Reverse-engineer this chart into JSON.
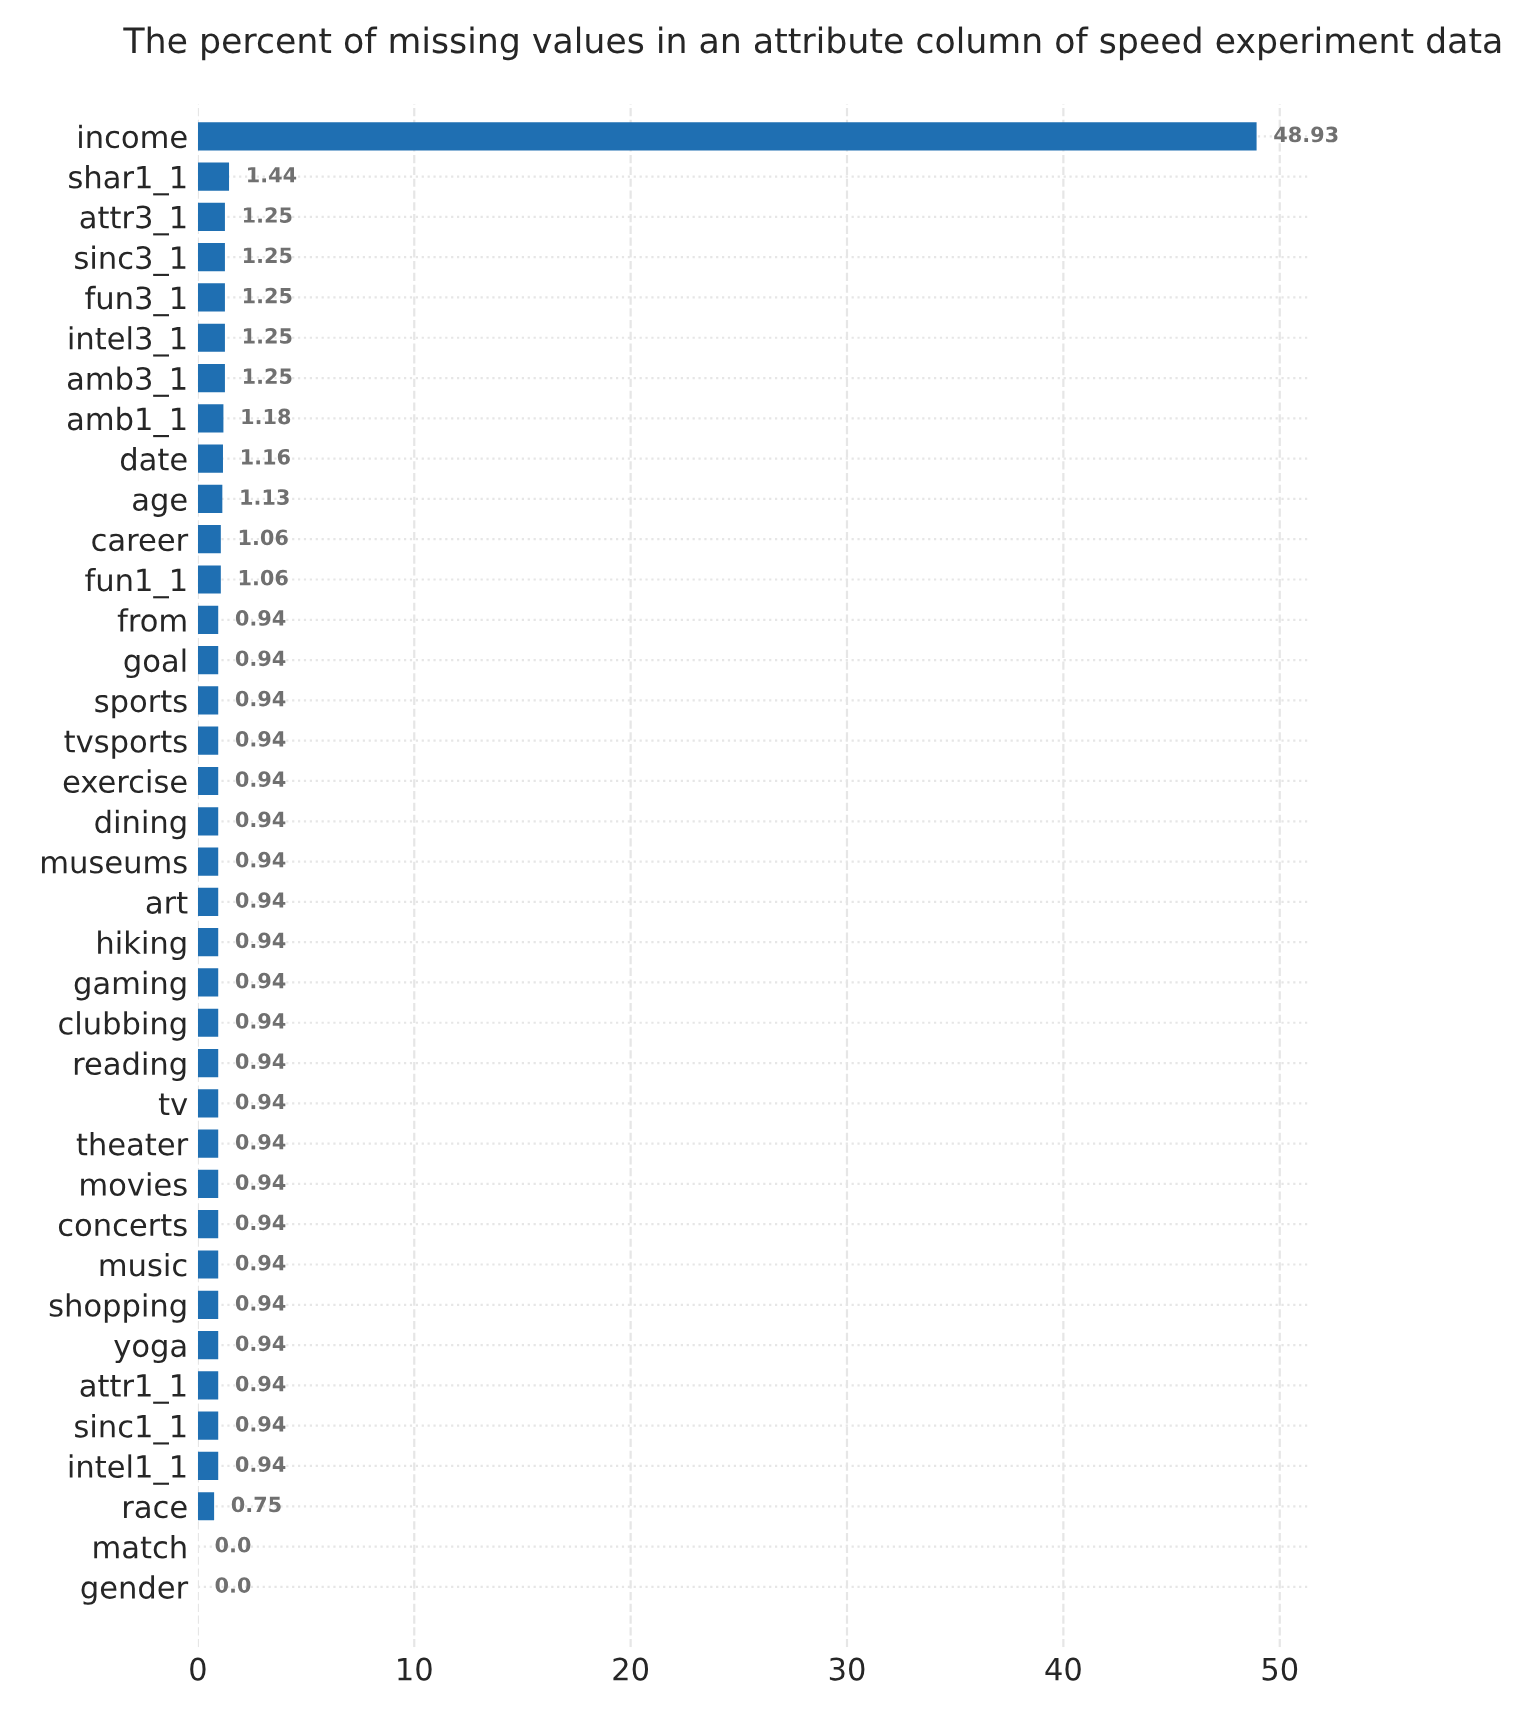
{
  "chart_data": {
    "type": "bar",
    "orientation": "horizontal",
    "title": "The percent of missing values in an attribute column of speed experiment data",
    "categories": [
      "income",
      "shar1_1",
      "attr3_1",
      "sinc3_1",
      "fun3_1",
      "intel3_1",
      "amb3_1",
      "amb1_1",
      "date",
      "age",
      "career",
      "fun1_1",
      "from",
      "goal",
      "sports",
      "tvsports",
      "exercise",
      "dining",
      "museums",
      "art",
      "hiking",
      "gaming",
      "clubbing",
      "reading",
      "tv",
      "theater",
      "movies",
      "concerts",
      "music",
      "shopping",
      "yoga",
      "attr1_1",
      "sinc1_1",
      "intel1_1",
      "race",
      "match",
      "gender"
    ],
    "values": [
      48.93,
      1.44,
      1.25,
      1.25,
      1.25,
      1.25,
      1.25,
      1.18,
      1.16,
      1.13,
      1.06,
      1.06,
      0.94,
      0.94,
      0.94,
      0.94,
      0.94,
      0.94,
      0.94,
      0.94,
      0.94,
      0.94,
      0.94,
      0.94,
      0.94,
      0.94,
      0.94,
      0.94,
      0.94,
      0.94,
      0.94,
      0.94,
      0.94,
      0.94,
      0.75,
      0.0,
      0.0
    ],
    "value_labels": [
      "48.93",
      "1.44",
      "1.25",
      "1.25",
      "1.25",
      "1.25",
      "1.25",
      "1.18",
      "1.16",
      "1.13",
      "1.06",
      "1.06",
      "0.94",
      "0.94",
      "0.94",
      "0.94",
      "0.94",
      "0.94",
      "0.94",
      "0.94",
      "0.94",
      "0.94",
      "0.94",
      "0.94",
      "0.94",
      "0.94",
      "0.94",
      "0.94",
      "0.94",
      "0.94",
      "0.94",
      "0.94",
      "0.94",
      "0.94",
      "0.75",
      "0.0",
      "0.0"
    ],
    "color": "#1f6fb2",
    "xlim": [
      0,
      51.4
    ],
    "xticks": [
      0,
      10,
      20,
      30,
      40,
      50
    ],
    "grid": true
  }
}
